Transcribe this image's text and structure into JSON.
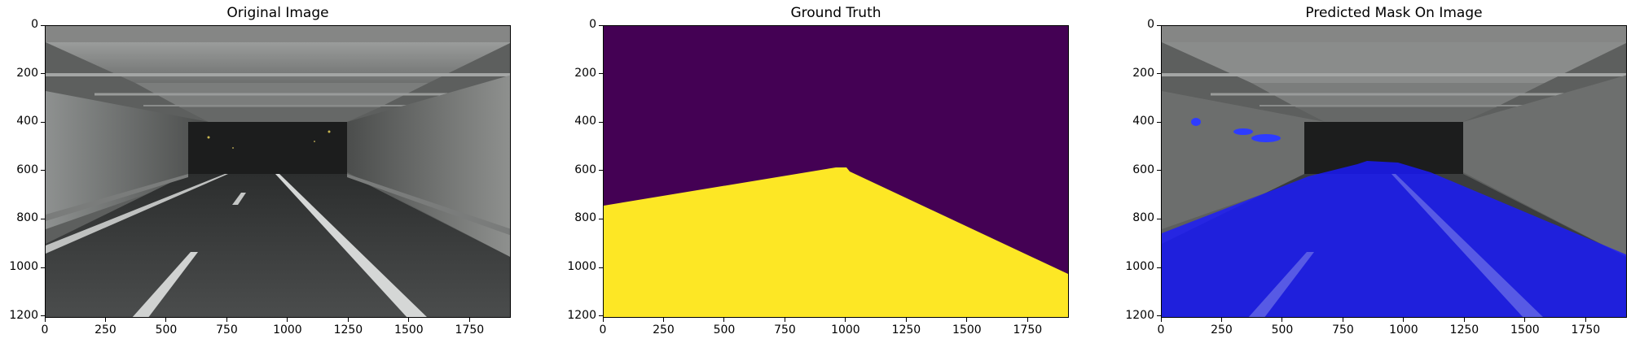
{
  "panels": [
    {
      "title": "Original Image"
    },
    {
      "title": "Ground Truth"
    },
    {
      "title": "Predicted Mask On Image"
    }
  ],
  "axes": {
    "x_ticks": [
      "0",
      "250",
      "500",
      "750",
      "1000",
      "1250",
      "1500",
      "1750"
    ],
    "x_tick_values": [
      0,
      250,
      500,
      750,
      1000,
      1250,
      1500,
      1750
    ],
    "y_ticks": [
      "0",
      "200",
      "400",
      "600",
      "800",
      "1000",
      "1200"
    ],
    "y_tick_values": [
      0,
      200,
      400,
      600,
      800,
      1000,
      1200
    ],
    "x_range": [
      0,
      1920
    ],
    "y_range": [
      0,
      1208
    ]
  },
  "colors": {
    "gt_background": "#440154",
    "gt_road": "#fde725",
    "mask_overlay": "#1a1aff"
  }
}
